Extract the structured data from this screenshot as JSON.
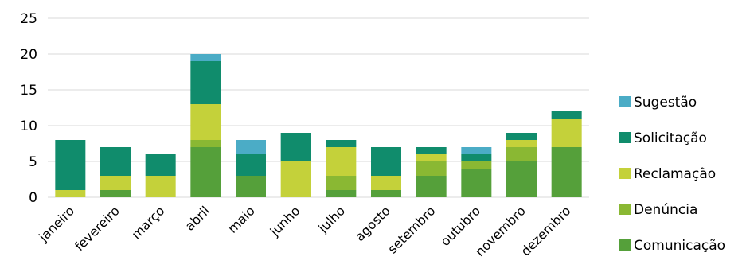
{
  "chart_data": {
    "type": "bar",
    "stacked": true,
    "categories": [
      "janeiro",
      "fevereiro",
      "março",
      "abril",
      "maio",
      "junho",
      "julho",
      "agosto",
      "setembro",
      "outubro",
      "novembro",
      "dezembro"
    ],
    "series": [
      {
        "name": "Comunicação",
        "color": "#55a03a",
        "values": [
          0,
          1,
          0,
          7,
          3,
          0,
          1,
          1,
          3,
          4,
          5,
          7
        ]
      },
      {
        "name": "Denúncia",
        "color": "#8ab833",
        "values": [
          0,
          0,
          0,
          1,
          0,
          0,
          2,
          0,
          2,
          1,
          2,
          0
        ]
      },
      {
        "name": "Reclamação",
        "color": "#c4d13a",
        "values": [
          1,
          2,
          3,
          5,
          0,
          5,
          4,
          2,
          1,
          0,
          1,
          4
        ]
      },
      {
        "name": "Solicitação",
        "color": "#108c6c",
        "values": [
          7,
          4,
          3,
          6,
          3,
          4,
          1,
          4,
          1,
          1,
          1,
          1
        ]
      },
      {
        "name": "Sugestão",
        "color": "#4bacc6",
        "values": [
          0,
          0,
          0,
          1,
          2,
          0,
          0,
          0,
          0,
          1,
          0,
          0
        ]
      }
    ],
    "ylim": [
      0,
      25
    ],
    "yticks": [
      0,
      5,
      10,
      15,
      20,
      25
    ],
    "grid": true,
    "legend_position": "right",
    "legend_order": [
      "Sugestão",
      "Solicitação",
      "Reclamação",
      "Denúncia",
      "Comunicação"
    ]
  }
}
